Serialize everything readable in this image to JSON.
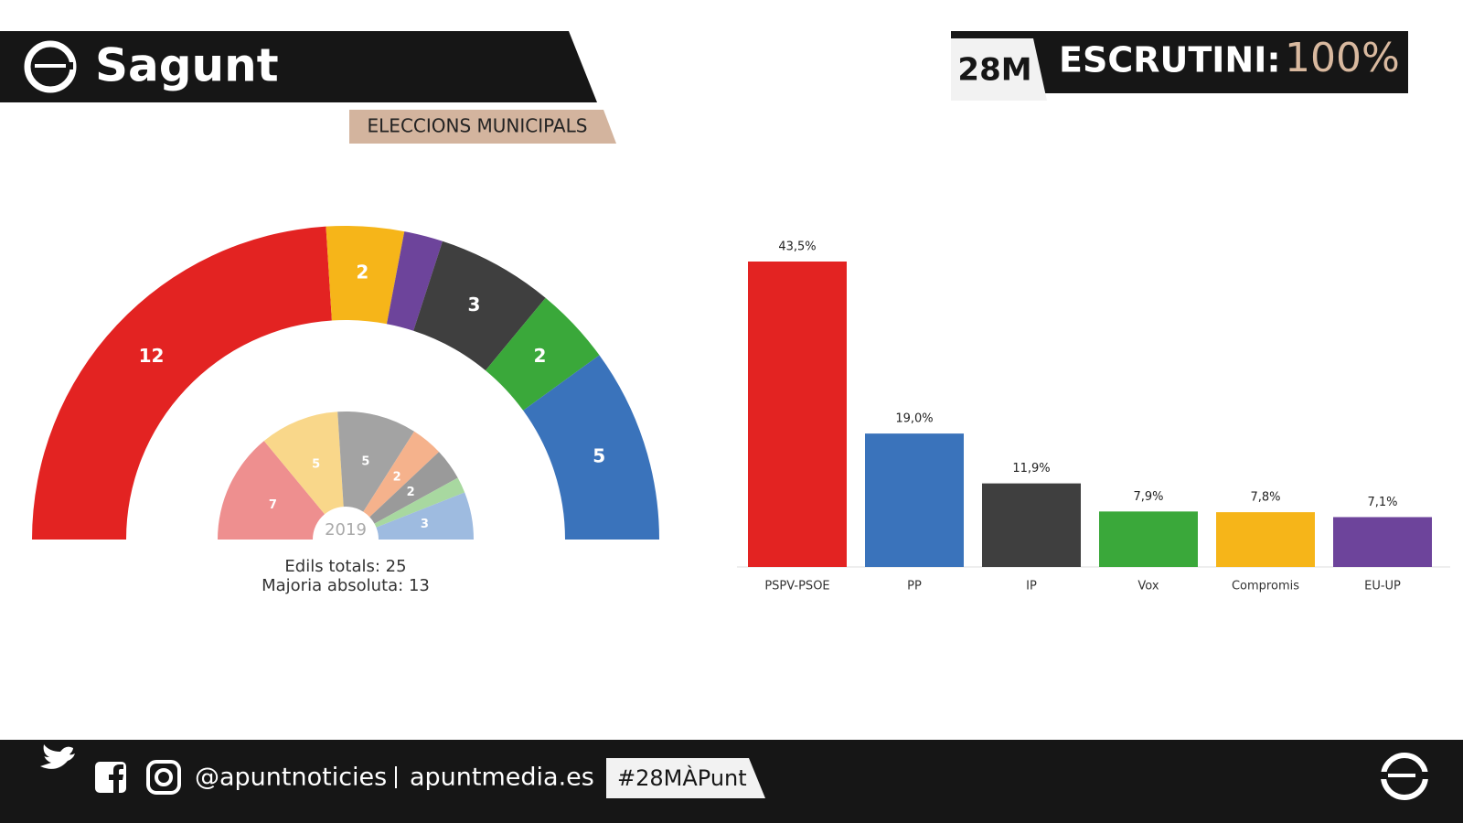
{
  "header": {
    "title": "Sagunt",
    "subtitle": "ELECCIONS MUNICIPALS",
    "badge": "28M",
    "status_label": "ESCRUTINI:",
    "status_value": "100%"
  },
  "footer": {
    "handle": "@apuntnoticies",
    "site": "apuntmedia.es",
    "hashtag": "#28MÀPunt"
  },
  "chart_data": [
    {
      "type": "parliament",
      "values": [
        12,
        2,
        1,
        3,
        2,
        5
      ],
      "colors": [
        "#e32322",
        "#f6b519",
        "#6d449b",
        "#3f3f3f",
        "#3aa83a",
        "#3a73bb"
      ],
      "annotations": [
        "Edils totals: 25",
        "Majoria absoluta: 13"
      ]
    },
    {
      "type": "parliament",
      "center_label": "2019",
      "values": [
        7,
        5,
        5,
        2,
        2,
        1,
        3
      ],
      "colors": [
        "#ee8f8f",
        "#f9d78a",
        "#a3a3a3",
        "#f5b28c",
        "#9a9a9a",
        "#a8d8a0",
        "#9ebbe0"
      ]
    },
    {
      "type": "bar",
      "categories": [
        "PSPV-PSOE",
        "PP",
        "IP",
        "Vox",
        "Compromis",
        "EU-UP"
      ],
      "values": [
        43.5,
        19.0,
        11.9,
        7.9,
        7.8,
        7.1
      ],
      "value_labels": [
        "43,5%",
        "19,0%",
        "11,9%",
        "7,9%",
        "7,8%",
        "7,1%"
      ],
      "colors": [
        "#e32322",
        "#3a73bb",
        "#3f3f3f",
        "#3aa83a",
        "#f6b519",
        "#6d449b"
      ]
    }
  ]
}
